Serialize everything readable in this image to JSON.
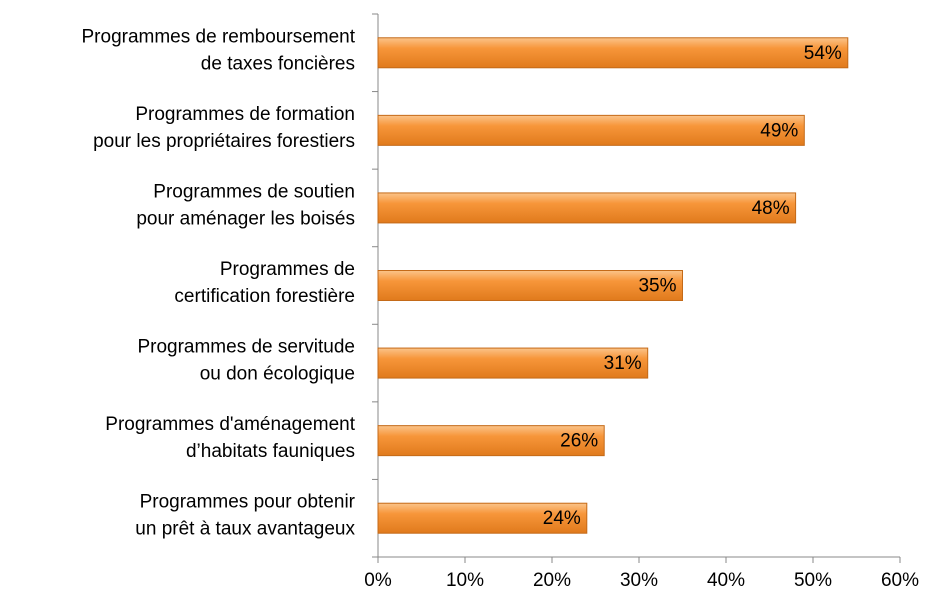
{
  "chart_data": {
    "type": "barh",
    "categories": [
      [
        "Programmes de remboursement",
        "de taxes foncières"
      ],
      [
        "Programmes de formation",
        "pour les propriétaires forestiers"
      ],
      [
        "Programmes de soutien",
        "pour aménager les boisés"
      ],
      [
        "Programmes de",
        "certification forestière"
      ],
      [
        "Programmes de servitude",
        "ou don écologique"
      ],
      [
        "Programmes d'aménagement",
        "d’habitats fauniques"
      ],
      [
        "Programmes pour obtenir",
        "un prêt à taux avantageux"
      ]
    ],
    "values": [
      54,
      49,
      48,
      35,
      31,
      26,
      24
    ],
    "value_labels": [
      "54%",
      "49%",
      "48%",
      "35%",
      "31%",
      "26%",
      "24%"
    ],
    "color": "#f7963a",
    "xlim": [
      0,
      60
    ],
    "xticks": [
      {
        "value": 0,
        "label": "0%"
      },
      {
        "value": 10,
        "label": "10%"
      },
      {
        "value": 20,
        "label": "20%"
      },
      {
        "value": 30,
        "label": "30%"
      },
      {
        "value": 40,
        "label": "40%"
      },
      {
        "value": 50,
        "label": "50%"
      },
      {
        "value": 60,
        "label": "60%"
      }
    ]
  }
}
